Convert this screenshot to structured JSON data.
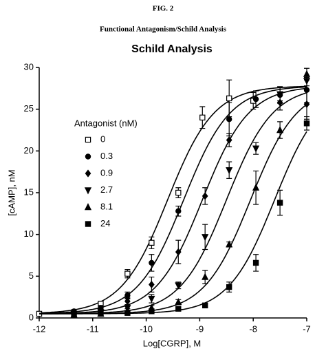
{
  "figure_label": "FIG. 2",
  "figure_caption": "Functional Antagonism/Schild Analysis",
  "chart_data": {
    "type": "scatter",
    "title": "Schild Analysis",
    "x_label": "Log[CGRP], M",
    "y_label": "[cAMP], nM",
    "legend_title": "Antagonist (nM)",
    "legend_position": "upper left",
    "color": "#000000",
    "xlim": [
      -12,
      -7
    ],
    "xticks": [
      -12,
      -11,
      -10,
      -9,
      -8,
      -7
    ],
    "ylim": [
      0,
      30
    ],
    "yticks": [
      0,
      5,
      10,
      15,
      20,
      25,
      30
    ],
    "series": [
      {
        "name": "0",
        "marker": "square-open",
        "x": [
          -12,
          -10.85,
          -10.35,
          -9.9,
          -9.4,
          -8.95,
          -8.45,
          -8.0
        ],
        "values": [
          0.5,
          1.7,
          5.3,
          9.0,
          15.0,
          24.0,
          26.3,
          26.0
        ],
        "errors": [
          0.2,
          0.3,
          0.5,
          0.7,
          0.6,
          1.3,
          2.2,
          1.0
        ],
        "fit": {
          "bottom": 0.5,
          "top": 27.8,
          "logEC50": -9.6,
          "hill": 1.0
        }
      },
      {
        "name": "0.3",
        "marker": "circle",
        "x": [
          -11.35,
          -10.85,
          -10.35,
          -9.9,
          -9.4,
          -8.45,
          -7.95,
          -7.5,
          -7.0
        ],
        "values": [
          0.8,
          1.2,
          2.7,
          6.6,
          12.8,
          23.8,
          26.2,
          26.7,
          27.3
        ],
        "errors": [
          0.2,
          0.3,
          0.4,
          1.0,
          0.6,
          2.0,
          1.0,
          1.0,
          1.5
        ],
        "fit": {
          "bottom": 0.5,
          "top": 27.8,
          "logEC50": -9.3,
          "hill": 1.0
        }
      },
      {
        "name": "0.9",
        "marker": "diamond",
        "x": [
          -11.35,
          -10.85,
          -10.35,
          -9.9,
          -9.4,
          -8.9,
          -8.45,
          -7.5,
          -7.0
        ],
        "values": [
          0.6,
          0.9,
          2.0,
          4.0,
          7.9,
          14.6,
          21.3,
          25.8,
          25.6
        ],
        "errors": [
          0.2,
          0.2,
          0.4,
          0.9,
          1.4,
          1.0,
          0.8,
          0.9,
          1.8
        ],
        "fit": {
          "bottom": 0.5,
          "top": 27.8,
          "logEC50": -8.95,
          "hill": 1.0
        }
      },
      {
        "name": "2.7",
        "marker": "triangle-down",
        "x": [
          -11.35,
          -10.85,
          -10.35,
          -9.9,
          -9.4,
          -8.9,
          -8.45,
          -7.95,
          -7.5,
          -7.0
        ],
        "values": [
          0.5,
          0.7,
          1.2,
          2.3,
          3.9,
          9.7,
          17.7,
          20.3,
          26.8,
          28.4
        ],
        "errors": [
          0.2,
          0.2,
          0.3,
          0.5,
          0.4,
          1.5,
          1.0,
          0.7,
          0.8,
          0.6
        ],
        "fit": {
          "bottom": 0.5,
          "top": 27.8,
          "logEC50": -8.5,
          "hill": 1.0
        }
      },
      {
        "name": "8.1",
        "marker": "triangle-up",
        "x": [
          -11.35,
          -10.85,
          -10.35,
          -9.9,
          -9.4,
          -8.9,
          -8.45,
          -7.95,
          -7.5,
          -7.0
        ],
        "values": [
          0.4,
          0.5,
          0.9,
          1.2,
          1.9,
          4.9,
          8.8,
          15.6,
          22.5,
          29.2
        ],
        "errors": [
          0.2,
          0.2,
          0.2,
          0.3,
          0.3,
          0.8,
          0.3,
          2.0,
          1.0,
          0.7
        ],
        "fit": {
          "bottom": 0.5,
          "top": 27.8,
          "logEC50": -8.05,
          "hill": 1.0
        }
      },
      {
        "name": "24",
        "marker": "square",
        "x": [
          -11.35,
          -10.85,
          -10.35,
          -9.9,
          -9.4,
          -8.9,
          -8.45,
          -7.95,
          -7.5,
          -7.0
        ],
        "values": [
          0.4,
          0.5,
          0.6,
          0.8,
          1.1,
          1.5,
          3.7,
          6.6,
          13.8,
          23.3
        ],
        "errors": [
          0.2,
          0.2,
          0.2,
          0.2,
          0.2,
          0.2,
          0.6,
          1.0,
          1.5,
          0.8
        ],
        "fit": {
          "bottom": 0.5,
          "top": 27.8,
          "logEC50": -7.6,
          "hill": 1.0
        }
      }
    ]
  }
}
